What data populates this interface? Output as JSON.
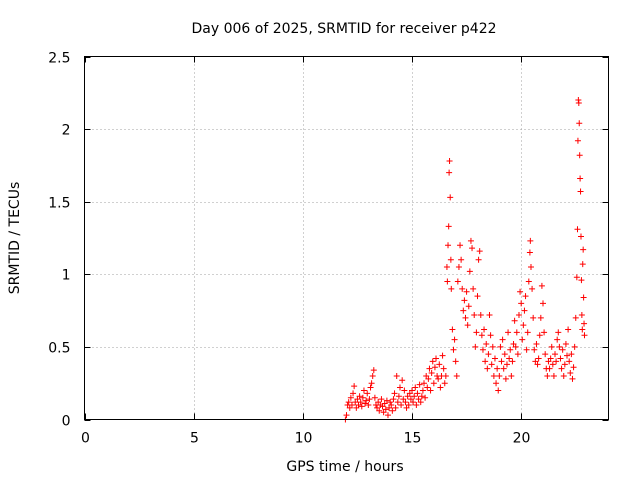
{
  "chart_data": {
    "type": "scatter",
    "title": "Day 006 of 2025, SRMTID for receiver p422",
    "xlabel": "GPS time / hours",
    "ylabel": "SRMTID / TECUs",
    "xlim": [
      0,
      24
    ],
    "ylim": [
      0,
      2.5
    ],
    "xticks": [
      0,
      5,
      10,
      15,
      20
    ],
    "xtick_labels": [
      "0",
      "5",
      "10",
      "15",
      "20"
    ],
    "yticks": [
      0,
      0.5,
      1,
      1.5,
      2,
      2.5
    ],
    "ytick_labels": [
      "0",
      "0.5",
      "1",
      "1.5",
      "2",
      "2.5"
    ],
    "grid": true,
    "marker": "+",
    "marker_color": "#ff0000",
    "series": [
      {
        "name": "p422",
        "points": [
          [
            11.95,
            0.0
          ],
          [
            12.0,
            0.03
          ],
          [
            12.05,
            0.1
          ],
          [
            12.1,
            0.12
          ],
          [
            12.15,
            0.08
          ],
          [
            12.2,
            0.15
          ],
          [
            12.25,
            0.1
          ],
          [
            12.3,
            0.18
          ],
          [
            12.35,
            0.23
          ],
          [
            12.4,
            0.12
          ],
          [
            12.45,
            0.08
          ],
          [
            12.5,
            0.14
          ],
          [
            12.55,
            0.1
          ],
          [
            12.6,
            0.16
          ],
          [
            12.65,
            0.12
          ],
          [
            12.7,
            0.09
          ],
          [
            12.75,
            0.15
          ],
          [
            12.8,
            0.2
          ],
          [
            12.85,
            0.11
          ],
          [
            12.9,
            0.13
          ],
          [
            12.95,
            0.18
          ],
          [
            13.0,
            0.1
          ],
          [
            13.05,
            0.14
          ],
          [
            13.1,
            0.22
          ],
          [
            13.15,
            0.25
          ],
          [
            13.2,
            0.3
          ],
          [
            13.25,
            0.34
          ],
          [
            13.3,
            0.15
          ],
          [
            13.35,
            0.1
          ],
          [
            13.4,
            0.08
          ],
          [
            13.45,
            0.12
          ],
          [
            13.5,
            0.06
          ],
          [
            13.55,
            0.1
          ],
          [
            13.6,
            0.14
          ],
          [
            13.65,
            0.09
          ],
          [
            13.7,
            0.05
          ],
          [
            13.75,
            0.11
          ],
          [
            13.8,
            0.07
          ],
          [
            13.85,
            0.13
          ],
          [
            13.9,
            0.03
          ],
          [
            13.95,
            0.08
          ],
          [
            14.0,
            0.12
          ],
          [
            14.05,
            0.1
          ],
          [
            14.1,
            0.06
          ],
          [
            14.15,
            0.14
          ],
          [
            14.2,
            0.18
          ],
          [
            14.25,
            0.08
          ],
          [
            14.3,
            0.3
          ],
          [
            14.35,
            0.12
          ],
          [
            14.4,
            0.16
          ],
          [
            14.45,
            0.22
          ],
          [
            14.5,
            0.1
          ],
          [
            14.55,
            0.27
          ],
          [
            14.6,
            0.14
          ],
          [
            14.65,
            0.2
          ],
          [
            14.7,
            0.12
          ],
          [
            14.75,
            0.08
          ],
          [
            14.8,
            0.16
          ],
          [
            14.85,
            0.1
          ],
          [
            14.9,
            0.18
          ],
          [
            14.95,
            0.14
          ],
          [
            15.0,
            0.2
          ],
          [
            15.05,
            0.12
          ],
          [
            15.1,
            0.16
          ],
          [
            15.15,
            0.22
          ],
          [
            15.2,
            0.1
          ],
          [
            15.25,
            0.18
          ],
          [
            15.3,
            0.14
          ],
          [
            15.35,
            0.24
          ],
          [
            15.4,
            0.12
          ],
          [
            15.45,
            0.16
          ],
          [
            15.5,
            0.2
          ],
          [
            15.55,
            0.25
          ],
          [
            15.6,
            0.15
          ],
          [
            15.65,
            0.3
          ],
          [
            15.7,
            0.22
          ],
          [
            15.75,
            0.28
          ],
          [
            15.8,
            0.35
          ],
          [
            15.85,
            0.2
          ],
          [
            15.9,
            0.32
          ],
          [
            15.95,
            0.4
          ],
          [
            16.0,
            0.25
          ],
          [
            16.05,
            0.36
          ],
          [
            16.1,
            0.42
          ],
          [
            16.15,
            0.3
          ],
          [
            16.2,
            0.28
          ],
          [
            16.25,
            0.38
          ],
          [
            16.3,
            0.22
          ],
          [
            16.35,
            0.3
          ],
          [
            16.4,
            0.44
          ],
          [
            16.45,
            0.35
          ],
          [
            16.5,
            0.25
          ],
          [
            16.55,
            0.3
          ],
          [
            16.6,
            1.05
          ],
          [
            16.62,
            0.95
          ],
          [
            16.65,
            1.2
          ],
          [
            16.68,
            1.33
          ],
          [
            16.7,
            1.7
          ],
          [
            16.72,
            1.78
          ],
          [
            16.75,
            1.53
          ],
          [
            16.78,
            1.1
          ],
          [
            16.8,
            0.9
          ],
          [
            16.85,
            0.62
          ],
          [
            16.9,
            0.48
          ],
          [
            16.95,
            0.55
          ],
          [
            17.0,
            0.4
          ],
          [
            17.05,
            0.3
          ],
          [
            17.1,
            0.95
          ],
          [
            17.15,
            1.05
          ],
          [
            17.2,
            1.2
          ],
          [
            17.25,
            1.1
          ],
          [
            17.3,
            0.9
          ],
          [
            17.35,
            0.75
          ],
          [
            17.4,
            0.82
          ],
          [
            17.45,
            0.7
          ],
          [
            17.5,
            0.88
          ],
          [
            17.55,
            0.65
          ],
          [
            17.6,
            0.78
          ],
          [
            17.65,
            1.02
          ],
          [
            17.7,
            1.23
          ],
          [
            17.75,
            1.18
          ],
          [
            17.8,
            0.9
          ],
          [
            17.85,
            0.72
          ],
          [
            17.9,
            0.5
          ],
          [
            17.95,
            0.6
          ],
          [
            18.0,
            0.85
          ],
          [
            18.05,
            1.1
          ],
          [
            18.1,
            1.16
          ],
          [
            18.15,
            0.72
          ],
          [
            18.2,
            0.58
          ],
          [
            18.25,
            0.48
          ],
          [
            18.3,
            0.62
          ],
          [
            18.35,
            0.4
          ],
          [
            18.4,
            0.52
          ],
          [
            18.45,
            0.35
          ],
          [
            18.5,
            0.45
          ],
          [
            18.55,
            0.72
          ],
          [
            18.6,
            0.58
          ],
          [
            18.65,
            0.38
          ],
          [
            18.7,
            0.5
          ],
          [
            18.75,
            0.3
          ],
          [
            18.8,
            0.42
          ],
          [
            18.85,
            0.25
          ],
          [
            18.9,
            0.35
          ],
          [
            18.95,
            0.2
          ],
          [
            19.0,
            0.3
          ],
          [
            19.05,
            0.5
          ],
          [
            19.1,
            0.4
          ],
          [
            19.15,
            0.55
          ],
          [
            19.2,
            0.35
          ],
          [
            19.25,
            0.45
          ],
          [
            19.3,
            0.28
          ],
          [
            19.35,
            0.38
          ],
          [
            19.4,
            0.6
          ],
          [
            19.45,
            0.42
          ],
          [
            19.5,
            0.48
          ],
          [
            19.55,
            0.3
          ],
          [
            19.6,
            0.4
          ],
          [
            19.65,
            0.52
          ],
          [
            19.7,
            0.68
          ],
          [
            19.75,
            0.5
          ],
          [
            19.8,
            0.6
          ],
          [
            19.85,
            0.45
          ],
          [
            19.9,
            0.72
          ],
          [
            19.95,
            0.88
          ],
          [
            20.0,
            0.8
          ],
          [
            20.05,
            0.55
          ],
          [
            20.1,
            0.65
          ],
          [
            20.15,
            0.75
          ],
          [
            20.2,
            0.85
          ],
          [
            20.25,
            0.48
          ],
          [
            20.3,
            0.6
          ],
          [
            20.35,
            0.95
          ],
          [
            20.4,
            1.15
          ],
          [
            20.42,
            1.23
          ],
          [
            20.45,
            1.05
          ],
          [
            20.5,
            0.9
          ],
          [
            20.55,
            0.7
          ],
          [
            20.6,
            0.48
          ],
          [
            20.65,
            0.4
          ],
          [
            20.7,
            0.52
          ],
          [
            20.75,
            0.38
          ],
          [
            20.8,
            0.42
          ],
          [
            20.85,
            0.58
          ],
          [
            20.9,
            0.7
          ],
          [
            20.95,
            0.92
          ],
          [
            21.0,
            0.8
          ],
          [
            21.05,
            0.6
          ],
          [
            21.1,
            0.45
          ],
          [
            21.15,
            0.35
          ],
          [
            21.2,
            0.3
          ],
          [
            21.25,
            0.4
          ],
          [
            21.3,
            0.35
          ],
          [
            21.35,
            0.42
          ],
          [
            21.4,
            0.5
          ],
          [
            21.45,
            0.38
          ],
          [
            21.5,
            0.3
          ],
          [
            21.55,
            0.45
          ],
          [
            21.6,
            0.4
          ],
          [
            21.65,
            0.55
          ],
          [
            21.7,
            0.6
          ],
          [
            21.75,
            0.5
          ],
          [
            21.8,
            0.42
          ],
          [
            21.85,
            0.35
          ],
          [
            21.9,
            0.48
          ],
          [
            21.95,
            0.3
          ],
          [
            22.0,
            0.38
          ],
          [
            22.05,
            0.52
          ],
          [
            22.1,
            0.44
          ],
          [
            22.15,
            0.62
          ],
          [
            22.2,
            0.4
          ],
          [
            22.25,
            0.32
          ],
          [
            22.3,
            0.45
          ],
          [
            22.35,
            0.28
          ],
          [
            22.4,
            0.36
          ],
          [
            22.45,
            0.5
          ],
          [
            22.5,
            0.7
          ],
          [
            22.55,
            0.98
          ],
          [
            22.58,
            1.31
          ],
          [
            22.6,
            1.92
          ],
          [
            22.62,
            2.2
          ],
          [
            22.64,
            2.18
          ],
          [
            22.66,
            2.04
          ],
          [
            22.68,
            1.82
          ],
          [
            22.7,
            1.66
          ],
          [
            22.72,
            1.57
          ],
          [
            22.74,
            1.26
          ],
          [
            22.76,
            0.96
          ],
          [
            22.78,
            0.72
          ],
          [
            22.8,
            0.62
          ],
          [
            22.82,
            1.07
          ],
          [
            22.84,
            1.17
          ],
          [
            22.86,
            0.84
          ],
          [
            22.88,
            0.66
          ],
          [
            22.9,
            0.58
          ]
        ]
      }
    ]
  }
}
